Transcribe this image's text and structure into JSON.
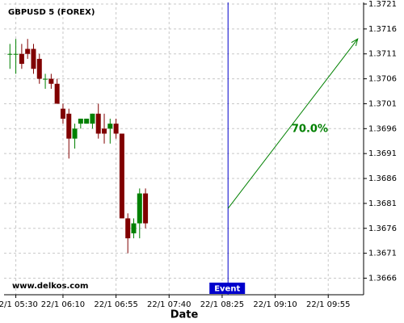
{
  "chart_data": {
    "type": "candlestick",
    "title": "GBPUSD 5 (FOREX)",
    "xlabel": "Date",
    "watermark": "www.delkos.com",
    "x": [
      "22/1 05:25",
      "22/1 05:30",
      "22/1 05:35",
      "22/1 05:40",
      "22/1 05:45",
      "22/1 05:50",
      "22/1 05:55",
      "22/1 06:00",
      "22/1 06:05",
      "22/1 06:10",
      "22/1 06:15",
      "22/1 06:20",
      "22/1 06:25",
      "22/1 06:30",
      "22/1 06:35",
      "22/1 06:40",
      "22/1 06:45",
      "22/1 06:50",
      "22/1 06:55",
      "22/1 07:00",
      "22/1 07:05",
      "22/1 07:10",
      "22/1 07:15",
      "22/1 07:20"
    ],
    "open": [
      1.3711,
      1.3711,
      1.3711,
      1.3712,
      1.3712,
      1.371,
      1.3706,
      1.3706,
      1.3705,
      1.37,
      1.3699,
      1.3694,
      1.3697,
      1.3697,
      1.3697,
      1.3699,
      1.3696,
      1.3696,
      1.3697,
      1.3695,
      1.3678,
      1.3675,
      1.3677,
      1.3683
    ],
    "high": [
      1.3713,
      1.3714,
      1.3713,
      1.3714,
      1.3713,
      1.3711,
      1.3707,
      1.3707,
      1.3706,
      1.3701,
      1.37,
      1.3697,
      1.3698,
      1.3698,
      1.3699,
      1.3701,
      1.3699,
      1.3698,
      1.3698,
      1.3695,
      1.3679,
      1.3678,
      1.3684,
      1.3684
    ],
    "low": [
      1.3708,
      1.3707,
      1.3708,
      1.371,
      1.3707,
      1.3705,
      1.3704,
      1.3704,
      1.3701,
      1.3697,
      1.369,
      1.3692,
      1.3696,
      1.3697,
      1.3696,
      1.3694,
      1.3693,
      1.3693,
      1.3694,
      1.3678,
      1.3671,
      1.3674,
      1.3674,
      1.3676
    ],
    "close": [
      1.3711,
      1.3711,
      1.3709,
      1.3711,
      1.3708,
      1.3706,
      1.3706,
      1.3705,
      1.3701,
      1.3698,
      1.3694,
      1.3696,
      1.3698,
      1.3698,
      1.3699,
      1.3695,
      1.3695,
      1.3697,
      1.3695,
      1.3678,
      1.3674,
      1.3677,
      1.3683,
      1.3677
    ],
    "up_color": "#008000",
    "down_color": "#800000",
    "xlim": [
      "22/1 05:20",
      "22/1 10:25"
    ],
    "xticks": [
      "22/1 05:30",
      "22/1 06:10",
      "22/1 06:55",
      "22/1 07:40",
      "22/1 08:25",
      "22/1 09:10",
      "22/1 09:55"
    ],
    "ylim": [
      1.3663,
      1.3721
    ],
    "yticks": [
      1.3666,
      1.3671,
      1.3676,
      1.3681,
      1.3686,
      1.3691,
      1.3696,
      1.3701,
      1.3706,
      1.3711,
      1.3716,
      1.3721
    ],
    "grid": true,
    "event": {
      "label": "Event",
      "x": "22/1 08:30",
      "color": "#0000cc"
    },
    "arrow": {
      "x": [
        "22/1 08:30",
        "22/1 10:20"
      ],
      "y": [
        1.368,
        1.3714
      ],
      "label": "70.0%",
      "color": "#008000"
    }
  }
}
